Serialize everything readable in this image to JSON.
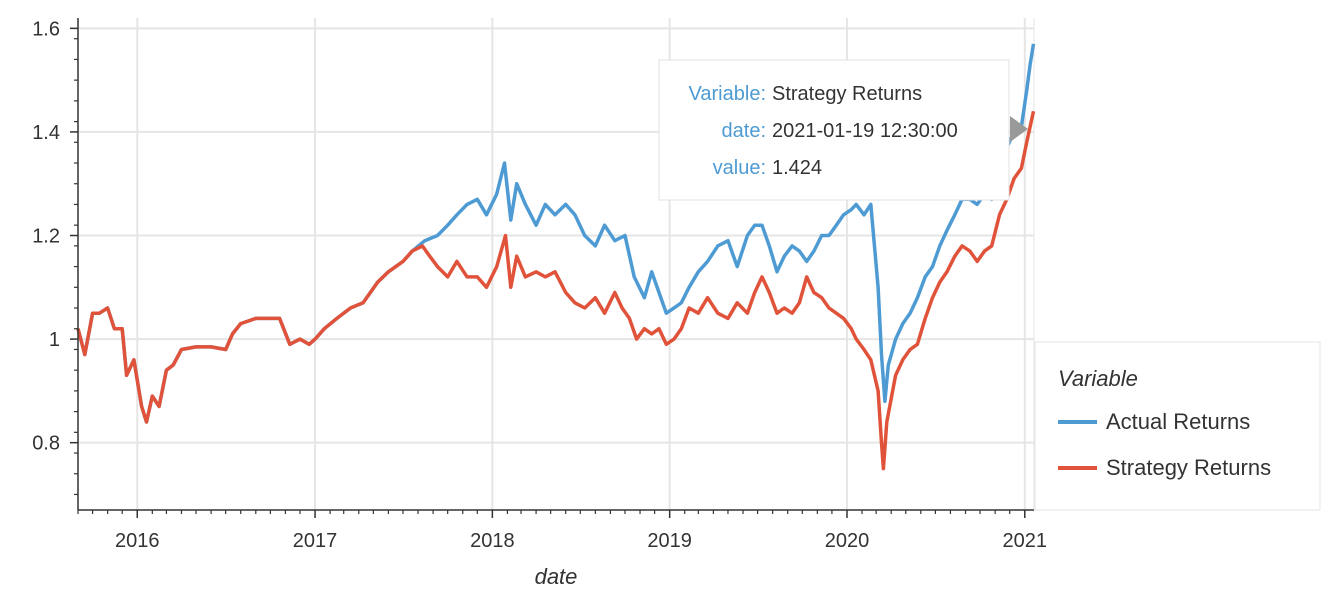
{
  "chart_data": {
    "type": "line",
    "xlabel": "date",
    "ylabel": "",
    "xlim": [
      "2015-09-01",
      "2021-01-20"
    ],
    "ylim": [
      0.67,
      1.62
    ],
    "x_ticks": [
      {
        "date": "2016-01-01",
        "label": "2016"
      },
      {
        "date": "2017-01-01",
        "label": "2017"
      },
      {
        "date": "2018-01-01",
        "label": "2018"
      },
      {
        "date": "2019-01-01",
        "label": "2019"
      },
      {
        "date": "2020-01-01",
        "label": "2020"
      },
      {
        "date": "2021-01-01",
        "label": "2021"
      }
    ],
    "y_ticks": [
      {
        "value": 0.8,
        "label": "0.8"
      },
      {
        "value": 1.0,
        "label": "1"
      },
      {
        "value": 1.2,
        "label": "1.2"
      },
      {
        "value": 1.4,
        "label": "1.4"
      },
      {
        "value": 1.6,
        "label": "1.6"
      }
    ],
    "grid": true,
    "legend": {
      "title": "Variable",
      "position": "right"
    },
    "series": [
      {
        "name": "Actual Returns",
        "color": "#4e9bd4",
        "points": [
          [
            "2015-09-01",
            1.02
          ],
          [
            "2015-09-15",
            0.97
          ],
          [
            "2015-10-01",
            1.05
          ],
          [
            "2015-10-15",
            1.05
          ],
          [
            "2015-11-01",
            1.06
          ],
          [
            "2015-11-15",
            1.02
          ],
          [
            "2015-12-01",
            1.02
          ],
          [
            "2015-12-10",
            0.93
          ],
          [
            "2015-12-25",
            0.96
          ],
          [
            "2016-01-10",
            0.87
          ],
          [
            "2016-01-20",
            0.84
          ],
          [
            "2016-02-01",
            0.89
          ],
          [
            "2016-02-15",
            0.87
          ],
          [
            "2016-03-01",
            0.94
          ],
          [
            "2016-03-15",
            0.95
          ],
          [
            "2016-04-01",
            0.98
          ],
          [
            "2016-05-01",
            0.985
          ],
          [
            "2016-06-01",
            0.985
          ],
          [
            "2016-07-01",
            0.98
          ],
          [
            "2016-07-15",
            1.01
          ],
          [
            "2016-08-01",
            1.03
          ],
          [
            "2016-09-01",
            1.04
          ],
          [
            "2016-10-01",
            1.04
          ],
          [
            "2016-10-20",
            1.04
          ],
          [
            "2016-11-10",
            0.99
          ],
          [
            "2016-12-01",
            1.0
          ],
          [
            "2016-12-20",
            0.99
          ],
          [
            "2017-01-01",
            1.0
          ],
          [
            "2017-01-20",
            1.02
          ],
          [
            "2017-02-15",
            1.04
          ],
          [
            "2017-03-15",
            1.06
          ],
          [
            "2017-04-10",
            1.07
          ],
          [
            "2017-05-10",
            1.11
          ],
          [
            "2017-06-01",
            1.13
          ],
          [
            "2017-07-01",
            1.15
          ],
          [
            "2017-07-20",
            1.17
          ],
          [
            "2017-08-15",
            1.19
          ],
          [
            "2017-09-10",
            1.2
          ],
          [
            "2017-10-01",
            1.22
          ],
          [
            "2017-10-20",
            1.24
          ],
          [
            "2017-11-10",
            1.26
          ],
          [
            "2017-12-01",
            1.27
          ],
          [
            "2017-12-20",
            1.24
          ],
          [
            "2018-01-10",
            1.28
          ],
          [
            "2018-01-26",
            1.34
          ],
          [
            "2018-02-08",
            1.23
          ],
          [
            "2018-02-20",
            1.3
          ],
          [
            "2018-03-10",
            1.26
          ],
          [
            "2018-04-01",
            1.22
          ],
          [
            "2018-04-20",
            1.26
          ],
          [
            "2018-05-10",
            1.24
          ],
          [
            "2018-06-01",
            1.26
          ],
          [
            "2018-06-20",
            1.24
          ],
          [
            "2018-07-10",
            1.2
          ],
          [
            "2018-08-01",
            1.18
          ],
          [
            "2018-08-20",
            1.22
          ],
          [
            "2018-09-10",
            1.19
          ],
          [
            "2018-10-01",
            1.2
          ],
          [
            "2018-10-20",
            1.12
          ],
          [
            "2018-11-10",
            1.08
          ],
          [
            "2018-11-25",
            1.13
          ],
          [
            "2018-12-10",
            1.09
          ],
          [
            "2018-12-25",
            1.05
          ],
          [
            "2019-01-10",
            1.06
          ],
          [
            "2019-01-25",
            1.07
          ],
          [
            "2019-02-10",
            1.1
          ],
          [
            "2019-03-01",
            1.13
          ],
          [
            "2019-03-20",
            1.15
          ],
          [
            "2019-04-10",
            1.18
          ],
          [
            "2019-05-01",
            1.19
          ],
          [
            "2019-05-20",
            1.14
          ],
          [
            "2019-06-10",
            1.2
          ],
          [
            "2019-06-25",
            1.22
          ],
          [
            "2019-07-10",
            1.22
          ],
          [
            "2019-07-25",
            1.18
          ],
          [
            "2019-08-10",
            1.13
          ],
          [
            "2019-08-25",
            1.16
          ],
          [
            "2019-09-10",
            1.18
          ],
          [
            "2019-09-25",
            1.17
          ],
          [
            "2019-10-10",
            1.15
          ],
          [
            "2019-10-25",
            1.17
          ],
          [
            "2019-11-10",
            1.2
          ],
          [
            "2019-11-25",
            1.2
          ],
          [
            "2019-12-10",
            1.22
          ],
          [
            "2019-12-25",
            1.24
          ],
          [
            "2020-01-10",
            1.25
          ],
          [
            "2020-01-20",
            1.26
          ],
          [
            "2020-02-05",
            1.24
          ],
          [
            "2020-02-19",
            1.26
          ],
          [
            "2020-03-05",
            1.1
          ],
          [
            "2020-03-12",
            0.97
          ],
          [
            "2020-03-19",
            0.88
          ],
          [
            "2020-03-26",
            0.95
          ],
          [
            "2020-04-10",
            1.0
          ],
          [
            "2020-04-25",
            1.03
          ],
          [
            "2020-05-10",
            1.05
          ],
          [
            "2020-05-25",
            1.08
          ],
          [
            "2020-06-10",
            1.12
          ],
          [
            "2020-06-25",
            1.14
          ],
          [
            "2020-07-10",
            1.18
          ],
          [
            "2020-07-25",
            1.21
          ],
          [
            "2020-08-10",
            1.24
          ],
          [
            "2020-08-25",
            1.27
          ],
          [
            "2020-09-10",
            1.27
          ],
          [
            "2020-09-25",
            1.26
          ],
          [
            "2020-10-10",
            1.28
          ],
          [
            "2020-10-25",
            1.27
          ],
          [
            "2020-11-10",
            1.33
          ],
          [
            "2020-11-25",
            1.37
          ],
          [
            "2020-12-10",
            1.4
          ],
          [
            "2020-12-25",
            1.41
          ],
          [
            "2021-01-05",
            1.48
          ],
          [
            "2021-01-12",
            1.53
          ],
          [
            "2021-01-19",
            1.57
          ]
        ]
      },
      {
        "name": "Strategy Returns",
        "color": "#e0533a",
        "points": [
          [
            "2015-09-01",
            1.02
          ],
          [
            "2015-09-15",
            0.97
          ],
          [
            "2015-10-01",
            1.05
          ],
          [
            "2015-10-15",
            1.05
          ],
          [
            "2015-11-01",
            1.06
          ],
          [
            "2015-11-15",
            1.02
          ],
          [
            "2015-12-01",
            1.02
          ],
          [
            "2015-12-10",
            0.93
          ],
          [
            "2015-12-25",
            0.96
          ],
          [
            "2016-01-10",
            0.87
          ],
          [
            "2016-01-20",
            0.84
          ],
          [
            "2016-02-01",
            0.89
          ],
          [
            "2016-02-15",
            0.87
          ],
          [
            "2016-03-01",
            0.94
          ],
          [
            "2016-03-15",
            0.95
          ],
          [
            "2016-04-01",
            0.98
          ],
          [
            "2016-05-01",
            0.985
          ],
          [
            "2016-06-01",
            0.985
          ],
          [
            "2016-07-01",
            0.98
          ],
          [
            "2016-07-15",
            1.01
          ],
          [
            "2016-08-01",
            1.03
          ],
          [
            "2016-09-01",
            1.04
          ],
          [
            "2016-10-01",
            1.04
          ],
          [
            "2016-10-20",
            1.04
          ],
          [
            "2016-11-10",
            0.99
          ],
          [
            "2016-12-01",
            1.0
          ],
          [
            "2016-12-20",
            0.99
          ],
          [
            "2017-01-01",
            1.0
          ],
          [
            "2017-01-20",
            1.02
          ],
          [
            "2017-02-15",
            1.04
          ],
          [
            "2017-03-15",
            1.06
          ],
          [
            "2017-04-10",
            1.07
          ],
          [
            "2017-05-10",
            1.11
          ],
          [
            "2017-06-01",
            1.13
          ],
          [
            "2017-07-01",
            1.15
          ],
          [
            "2017-07-20",
            1.17
          ],
          [
            "2017-08-10",
            1.18
          ],
          [
            "2017-08-25",
            1.16
          ],
          [
            "2017-09-10",
            1.14
          ],
          [
            "2017-10-01",
            1.12
          ],
          [
            "2017-10-20",
            1.15
          ],
          [
            "2017-11-10",
            1.12
          ],
          [
            "2017-12-01",
            1.12
          ],
          [
            "2017-12-20",
            1.1
          ],
          [
            "2018-01-10",
            1.14
          ],
          [
            "2018-01-28",
            1.2
          ],
          [
            "2018-02-08",
            1.1
          ],
          [
            "2018-02-20",
            1.16
          ],
          [
            "2018-03-10",
            1.12
          ],
          [
            "2018-04-01",
            1.13
          ],
          [
            "2018-04-20",
            1.12
          ],
          [
            "2018-05-10",
            1.13
          ],
          [
            "2018-06-01",
            1.09
          ],
          [
            "2018-06-20",
            1.07
          ],
          [
            "2018-07-10",
            1.06
          ],
          [
            "2018-08-01",
            1.08
          ],
          [
            "2018-08-20",
            1.05
          ],
          [
            "2018-09-10",
            1.09
          ],
          [
            "2018-09-25",
            1.06
          ],
          [
            "2018-10-10",
            1.04
          ],
          [
            "2018-10-25",
            1.0
          ],
          [
            "2018-11-10",
            1.02
          ],
          [
            "2018-11-25",
            1.01
          ],
          [
            "2018-12-10",
            1.02
          ],
          [
            "2018-12-25",
            0.99
          ],
          [
            "2019-01-10",
            1.0
          ],
          [
            "2019-01-25",
            1.02
          ],
          [
            "2019-02-10",
            1.06
          ],
          [
            "2019-03-01",
            1.05
          ],
          [
            "2019-03-20",
            1.08
          ],
          [
            "2019-04-10",
            1.05
          ],
          [
            "2019-05-01",
            1.04
          ],
          [
            "2019-05-20",
            1.07
          ],
          [
            "2019-06-10",
            1.05
          ],
          [
            "2019-06-25",
            1.09
          ],
          [
            "2019-07-10",
            1.12
          ],
          [
            "2019-07-25",
            1.09
          ],
          [
            "2019-08-10",
            1.05
          ],
          [
            "2019-08-25",
            1.06
          ],
          [
            "2019-09-10",
            1.05
          ],
          [
            "2019-09-25",
            1.07
          ],
          [
            "2019-10-10",
            1.12
          ],
          [
            "2019-10-25",
            1.09
          ],
          [
            "2019-11-10",
            1.08
          ],
          [
            "2019-11-25",
            1.06
          ],
          [
            "2019-12-10",
            1.05
          ],
          [
            "2019-12-25",
            1.04
          ],
          [
            "2020-01-10",
            1.02
          ],
          [
            "2020-01-20",
            1.0
          ],
          [
            "2020-02-05",
            0.98
          ],
          [
            "2020-02-19",
            0.96
          ],
          [
            "2020-03-05",
            0.9
          ],
          [
            "2020-03-12",
            0.8
          ],
          [
            "2020-03-16",
            0.75
          ],
          [
            "2020-03-23",
            0.84
          ],
          [
            "2020-04-10",
            0.93
          ],
          [
            "2020-04-25",
            0.96
          ],
          [
            "2020-05-10",
            0.98
          ],
          [
            "2020-05-25",
            0.99
          ],
          [
            "2020-06-10",
            1.04
          ],
          [
            "2020-06-25",
            1.08
          ],
          [
            "2020-07-10",
            1.11
          ],
          [
            "2020-07-25",
            1.13
          ],
          [
            "2020-08-10",
            1.16
          ],
          [
            "2020-08-25",
            1.18
          ],
          [
            "2020-09-10",
            1.17
          ],
          [
            "2020-09-25",
            1.15
          ],
          [
            "2020-10-10",
            1.17
          ],
          [
            "2020-10-25",
            1.18
          ],
          [
            "2020-11-10",
            1.24
          ],
          [
            "2020-11-25",
            1.27
          ],
          [
            "2020-12-10",
            1.31
          ],
          [
            "2020-12-25",
            1.33
          ],
          [
            "2021-01-05",
            1.38
          ],
          [
            "2021-01-12",
            1.41
          ],
          [
            "2021-01-19",
            1.44
          ]
        ]
      }
    ],
    "tooltip": {
      "rows": [
        {
          "key": "Variable:",
          "value": "Strategy Returns"
        },
        {
          "key": "date:",
          "value": "2021-01-19 12:30:00"
        },
        {
          "key": "value:",
          "value": "1.424"
        }
      ],
      "anchor": {
        "date": "2021-01-19",
        "value": 1.424
      }
    }
  },
  "colors": {
    "axis": "#333333",
    "grid": "#e5e5e5",
    "tooltip_key": "#4e9bd4",
    "tooltip_border": "#e0e0e0",
    "tooltip_pointer": "#999999"
  }
}
